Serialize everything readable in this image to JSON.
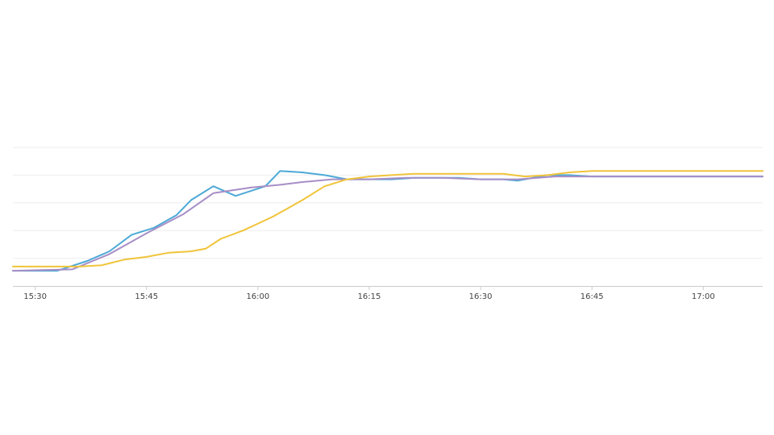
{
  "chart_data": {
    "type": "line",
    "title": "",
    "xlabel": "",
    "ylabel": "",
    "grid": true,
    "xlim": [
      "15:27",
      "17:08"
    ],
    "x_ticks": [
      "15:30",
      "15:45",
      "16:00",
      "16:15",
      "16:30",
      "16:45",
      "17:00"
    ],
    "series": [
      {
        "color": "#4da9d6",
        "points": [
          [
            "15:27",
            11
          ],
          [
            "15:33",
            11
          ],
          [
            "15:37",
            18
          ],
          [
            "15:40",
            25
          ],
          [
            "15:43",
            37
          ],
          [
            "15:46",
            42
          ],
          [
            "15:49",
            51
          ],
          [
            "15:51",
            62
          ],
          [
            "15:54",
            72
          ],
          [
            "15:57",
            65
          ],
          [
            "16:01",
            72
          ],
          [
            "16:03",
            83
          ],
          [
            "16:06",
            82
          ],
          [
            "16:09",
            80
          ],
          [
            "16:12",
            77
          ],
          [
            "16:15",
            77
          ],
          [
            "16:18",
            77
          ],
          [
            "16:21",
            78
          ],
          [
            "16:24",
            78
          ],
          [
            "16:27",
            78
          ],
          [
            "16:30",
            77
          ],
          [
            "16:33",
            77
          ],
          [
            "16:35",
            76
          ],
          [
            "16:39",
            80
          ],
          [
            "16:42",
            80
          ],
          [
            "16:45",
            79
          ],
          [
            "16:48",
            79
          ],
          [
            "16:51",
            79
          ],
          [
            "16:54",
            79
          ],
          [
            "16:57",
            79
          ],
          [
            "17:00",
            79
          ],
          [
            "17:03",
            79
          ],
          [
            "17:06",
            79
          ],
          [
            "17:08",
            79
          ]
        ]
      },
      {
        "color": "#a78ec6",
        "points": [
          [
            "15:27",
            11
          ],
          [
            "15:35",
            12
          ],
          [
            "15:40",
            23
          ],
          [
            "15:45",
            38
          ],
          [
            "15:50",
            52
          ],
          [
            "15:54",
            67
          ],
          [
            "15:59",
            71
          ],
          [
            "16:03",
            73
          ],
          [
            "16:06",
            75
          ],
          [
            "16:10",
            77
          ],
          [
            "16:15",
            77
          ],
          [
            "16:20",
            78
          ],
          [
            "16:25",
            78
          ],
          [
            "16:30",
            77
          ],
          [
            "16:35",
            77
          ],
          [
            "16:40",
            79
          ],
          [
            "16:45",
            79
          ],
          [
            "16:50",
            79
          ],
          [
            "16:55",
            79
          ],
          [
            "17:00",
            79
          ],
          [
            "17:08",
            79
          ]
        ]
      },
      {
        "color": "#f0c43a",
        "points": [
          [
            "15:27",
            14
          ],
          [
            "15:33",
            14
          ],
          [
            "15:36",
            14
          ],
          [
            "15:39",
            15
          ],
          [
            "15:42",
            19
          ],
          [
            "15:45",
            21
          ],
          [
            "15:48",
            24
          ],
          [
            "15:51",
            25
          ],
          [
            "15:53",
            27
          ],
          [
            "15:55",
            34
          ],
          [
            "15:58",
            40
          ],
          [
            "16:00",
            45
          ],
          [
            "16:02",
            50
          ],
          [
            "16:04",
            56
          ],
          [
            "16:06",
            62
          ],
          [
            "16:09",
            72
          ],
          [
            "16:12",
            77
          ],
          [
            "16:15",
            79
          ],
          [
            "16:18",
            80
          ],
          [
            "16:21",
            81
          ],
          [
            "16:24",
            81
          ],
          [
            "16:27",
            81
          ],
          [
            "16:30",
            81
          ],
          [
            "16:33",
            81
          ],
          [
            "16:36",
            79
          ],
          [
            "16:39",
            80
          ],
          [
            "16:42",
            82
          ],
          [
            "16:45",
            83
          ],
          [
            "16:50",
            83
          ],
          [
            "16:55",
            83
          ],
          [
            "17:00",
            83
          ],
          [
            "17:08",
            83
          ]
        ]
      }
    ]
  }
}
